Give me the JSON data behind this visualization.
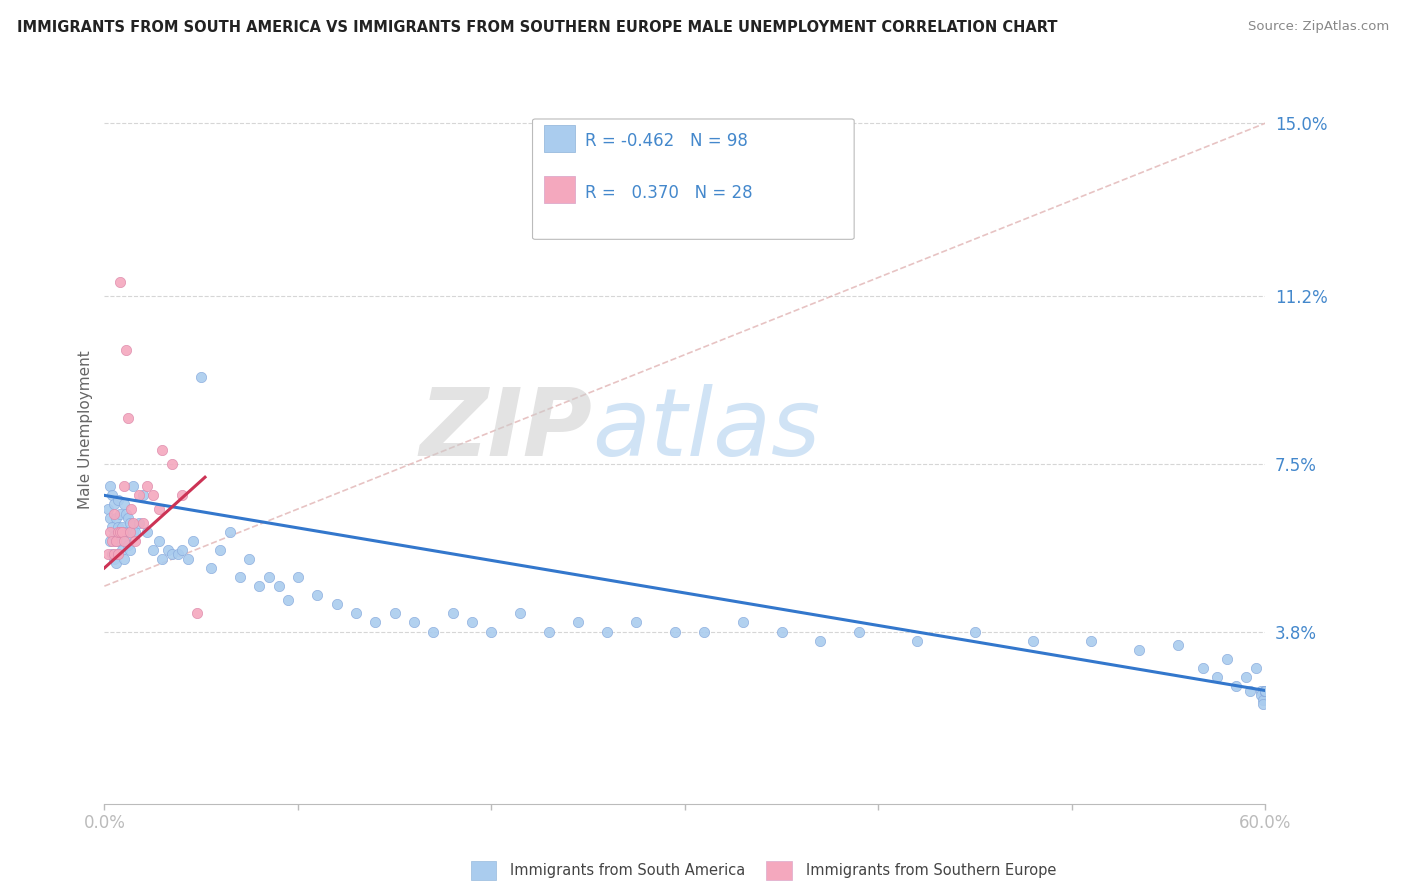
{
  "title": "IMMIGRANTS FROM SOUTH AMERICA VS IMMIGRANTS FROM SOUTHERN EUROPE MALE UNEMPLOYMENT CORRELATION CHART",
  "source": "Source: ZipAtlas.com",
  "ylabel": "Male Unemployment",
  "xmin": 0.0,
  "xmax": 0.6,
  "ymin": 0.0,
  "ymax": 0.165,
  "yticks": [
    0.038,
    0.075,
    0.112,
    0.15
  ],
  "ytick_labels": [
    "3.8%",
    "7.5%",
    "11.2%",
    "15.0%"
  ],
  "series1_label": "Immigrants from South America",
  "series2_label": "Immigrants from Southern Europe",
  "series1_color": "#aaccee",
  "series2_color": "#f4a8be",
  "series1_R": "-0.462",
  "series1_N": "98",
  "series2_R": "0.370",
  "series2_N": "28",
  "trendline1_color": "#3377cc",
  "trendline2_color": "#cc3355",
  "watermark_zip": "ZIP",
  "watermark_atlas": "atlas",
  "background_color": "#ffffff",
  "grid_color": "#cccccc",
  "title_color": "#222222",
  "source_color": "#888888",
  "axis_label_color": "#4488cc",
  "legend_text_color": "#4488cc",
  "bottom_legend_text_color": "#444444",
  "trendline1_start_x": 0.0,
  "trendline1_start_y": 0.068,
  "trendline1_end_x": 0.6,
  "trendline1_end_y": 0.025,
  "trendline2_start_x": 0.0,
  "trendline2_start_y": 0.052,
  "trendline2_end_x": 0.052,
  "trendline2_end_y": 0.072,
  "dashed_line_start_x": 0.0,
  "dashed_line_start_y": 0.048,
  "dashed_line_end_x": 0.6,
  "dashed_line_end_y": 0.15,
  "s1_x": [
    0.002,
    0.003,
    0.003,
    0.003,
    0.004,
    0.004,
    0.004,
    0.005,
    0.005,
    0.005,
    0.006,
    0.006,
    0.006,
    0.007,
    0.007,
    0.007,
    0.008,
    0.008,
    0.009,
    0.009,
    0.01,
    0.01,
    0.01,
    0.011,
    0.011,
    0.012,
    0.012,
    0.013,
    0.013,
    0.015,
    0.015,
    0.016,
    0.018,
    0.02,
    0.022,
    0.025,
    0.028,
    0.03,
    0.033,
    0.035,
    0.038,
    0.04,
    0.043,
    0.046,
    0.05,
    0.055,
    0.06,
    0.065,
    0.07,
    0.075,
    0.08,
    0.085,
    0.09,
    0.095,
    0.1,
    0.11,
    0.12,
    0.13,
    0.14,
    0.15,
    0.16,
    0.17,
    0.18,
    0.19,
    0.2,
    0.215,
    0.23,
    0.245,
    0.26,
    0.275,
    0.295,
    0.31,
    0.33,
    0.35,
    0.37,
    0.39,
    0.42,
    0.45,
    0.48,
    0.51,
    0.535,
    0.555,
    0.568,
    0.575,
    0.58,
    0.585,
    0.59,
    0.592,
    0.595,
    0.598,
    0.598,
    0.599,
    0.599,
    0.6,
    0.6,
    0.6,
    0.6,
    0.6
  ],
  "s1_y": [
    0.065,
    0.07,
    0.063,
    0.058,
    0.068,
    0.061,
    0.055,
    0.066,
    0.059,
    0.054,
    0.063,
    0.058,
    0.053,
    0.067,
    0.061,
    0.055,
    0.064,
    0.058,
    0.061,
    0.056,
    0.066,
    0.06,
    0.054,
    0.064,
    0.058,
    0.063,
    0.057,
    0.062,
    0.056,
    0.07,
    0.06,
    0.06,
    0.062,
    0.068,
    0.06,
    0.056,
    0.058,
    0.054,
    0.056,
    0.055,
    0.055,
    0.056,
    0.054,
    0.058,
    0.094,
    0.052,
    0.056,
    0.06,
    0.05,
    0.054,
    0.048,
    0.05,
    0.048,
    0.045,
    0.05,
    0.046,
    0.044,
    0.042,
    0.04,
    0.042,
    0.04,
    0.038,
    0.042,
    0.04,
    0.038,
    0.042,
    0.038,
    0.04,
    0.038,
    0.04,
    0.038,
    0.038,
    0.04,
    0.038,
    0.036,
    0.038,
    0.036,
    0.038,
    0.036,
    0.036,
    0.034,
    0.035,
    0.03,
    0.028,
    0.032,
    0.026,
    0.028,
    0.025,
    0.03,
    0.025,
    0.024,
    0.023,
    0.022,
    0.025,
    0.025,
    0.025,
    0.025,
    0.025
  ],
  "s2_x": [
    0.002,
    0.003,
    0.004,
    0.005,
    0.005,
    0.006,
    0.007,
    0.007,
    0.008,
    0.008,
    0.009,
    0.01,
    0.01,
    0.011,
    0.012,
    0.013,
    0.014,
    0.015,
    0.016,
    0.018,
    0.02,
    0.022,
    0.025,
    0.028,
    0.03,
    0.035,
    0.04,
    0.048
  ],
  "s2_y": [
    0.055,
    0.06,
    0.058,
    0.064,
    0.055,
    0.058,
    0.055,
    0.06,
    0.115,
    0.06,
    0.06,
    0.07,
    0.058,
    0.1,
    0.085,
    0.06,
    0.065,
    0.062,
    0.058,
    0.068,
    0.062,
    0.07,
    0.068,
    0.065,
    0.078,
    0.075,
    0.068,
    0.042
  ]
}
